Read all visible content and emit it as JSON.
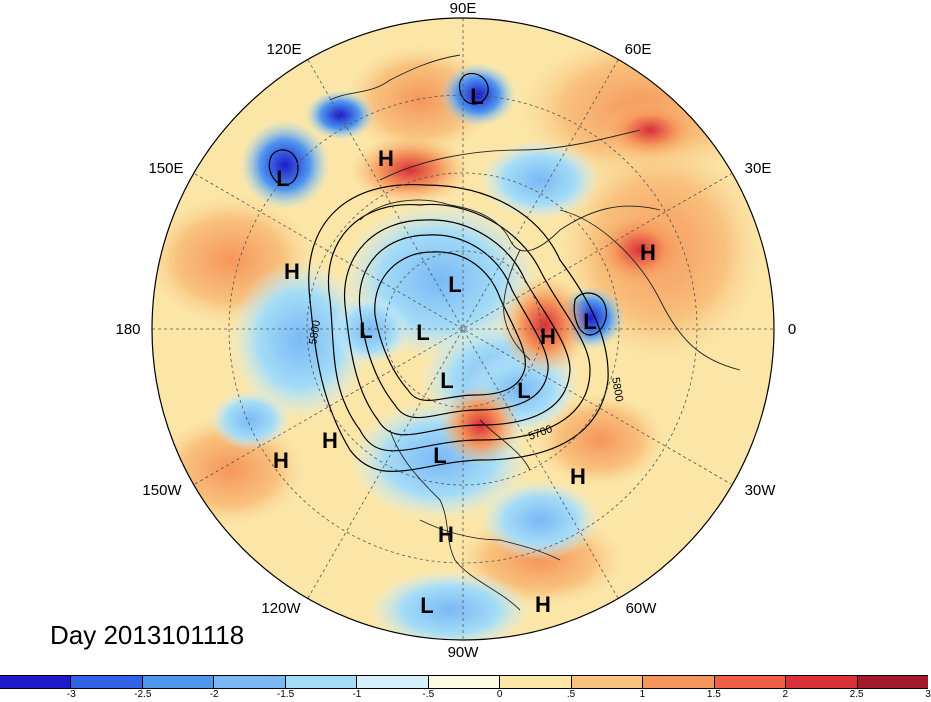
{
  "map": {
    "title_label": "Day 2013101118",
    "longitude_labels": {
      "top": "90E",
      "upper_left": "120E",
      "upper_right": "60E",
      "left_upper": "150E",
      "right_upper": "30E",
      "left": "180",
      "right": "0",
      "left_lower": "150W",
      "right_lower": "30W",
      "lower_left": "120W",
      "lower_right": "60W",
      "bottom": "90W"
    },
    "contour_labels": [
      "5800",
      "5800",
      "5700"
    ],
    "systems": [
      {
        "type": "L"
      },
      {
        "type": "L"
      },
      {
        "type": "H"
      },
      {
        "type": "H"
      },
      {
        "type": "H"
      },
      {
        "type": "L"
      },
      {
        "type": "L"
      },
      {
        "type": "L"
      },
      {
        "type": "L"
      },
      {
        "type": "H"
      },
      {
        "type": "L"
      },
      {
        "type": "L"
      },
      {
        "type": "H"
      },
      {
        "type": "H"
      },
      {
        "type": "L"
      },
      {
        "type": "H"
      },
      {
        "type": "H"
      },
      {
        "type": "L"
      },
      {
        "type": "H"
      }
    ]
  },
  "colorbar": {
    "ticks": [
      "-3",
      "-2.5",
      "-2",
      "-1.5",
      "-1",
      "-.5",
      "0",
      ".5",
      "1",
      "1.5",
      "2",
      "2.5",
      "3"
    ],
    "colors": [
      "#1c1acb",
      "#2f62e6",
      "#4f96ef",
      "#7ab8f5",
      "#a4dcf7",
      "#d3f0fb",
      "#fafbe0",
      "#fbe6a8",
      "#f9c27e",
      "#f5965b",
      "#ee5f45",
      "#d9303a",
      "#a31a2a"
    ]
  }
}
